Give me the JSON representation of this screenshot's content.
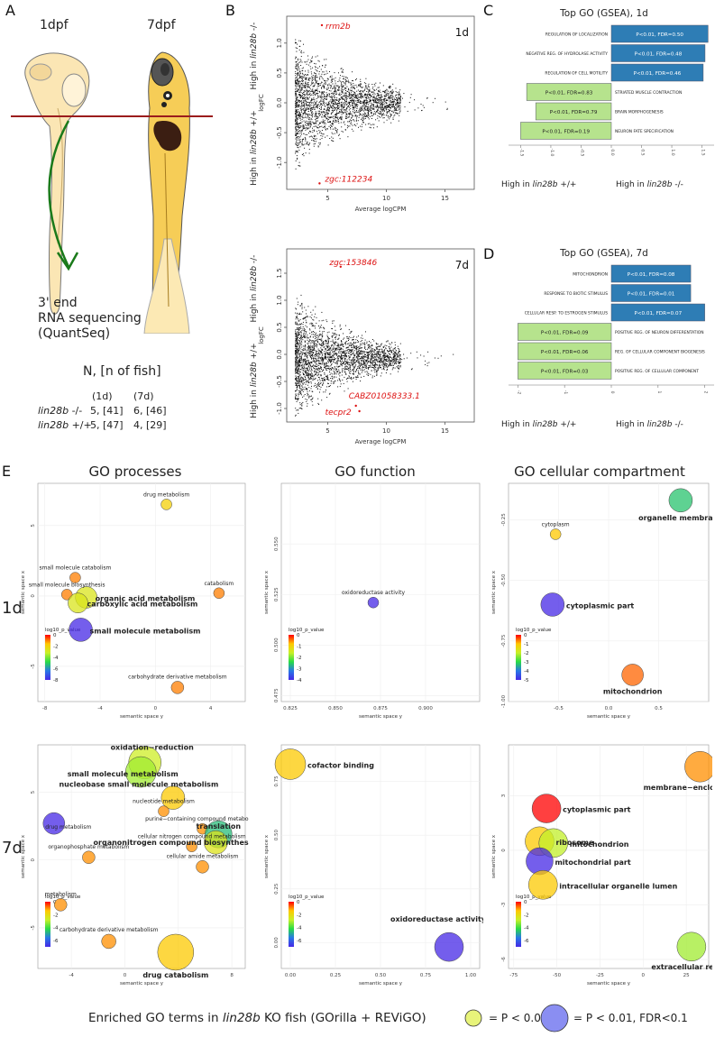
{
  "letters": {
    "a": "A",
    "b": "B",
    "c": "C",
    "d": "D",
    "e": "E"
  },
  "panel_a": {
    "stage1": "1dpf",
    "stage2": "7dpf",
    "seq1": "3' end",
    "seq2": "RNA sequencing",
    "seq3": "(QuantSeq)",
    "n_title": "N, [n of fish]",
    "col1": "(1d)",
    "col2": "(7d)",
    "rows": [
      {
        "gene": "lin28b",
        "geno": " -/-",
        "c1": "5, [41]",
        "c2": "6, [46]"
      },
      {
        "gene": "lin28b",
        "geno": " +/+",
        "c1": "5, [47]",
        "c2": "4, [29]"
      }
    ]
  },
  "ma_plots": [
    {
      "label": "1d",
      "high_top": "High in ",
      "high_top_gene": "lin28b",
      "high_top_geno": " -/-",
      "high_bot": "High in ",
      "high_bot_gene": "lin28b",
      "high_bot_geno": " +/+",
      "ylabel": "logFC",
      "xlabel": "Average logCPM",
      "xticks": [
        "5",
        "10",
        "15"
      ],
      "yticks": [
        "1.0",
        "0.5",
        "0.0",
        "-0.5",
        "-1.0"
      ],
      "genes": [
        {
          "name": "rrm2b",
          "x": 4.5,
          "y": 1.3
        },
        {
          "name": "zgc:112234",
          "x": 4.3,
          "y": -1.35
        }
      ],
      "xlim": [
        1.5,
        17.5
      ],
      "ylim": [
        -1.45,
        1.45
      ]
    },
    {
      "label": "7d",
      "high_top": "High in ",
      "high_top_gene": "lin28b",
      "high_top_geno": " -/-",
      "high_bot": "High in ",
      "high_bot_gene": "lin28b",
      "high_bot_geno": " +/+",
      "ylabel": "logFC",
      "xlabel": "Average logCPM",
      "xticks": [
        "5",
        "10",
        "15"
      ],
      "yticks": [
        "1.5",
        "1.0",
        "0.5",
        "0.0",
        "-0.5",
        "-1.0"
      ],
      "genes": [
        {
          "name": "zgc:153846",
          "x": 6.1,
          "y": 1.62
        },
        {
          "name": "CABZ01058333.1",
          "x": 7.4,
          "y": -0.95
        },
        {
          "name": "tecpr2",
          "x": 7.7,
          "y": -1.05
        }
      ],
      "xlim": [
        1.5,
        17.5
      ],
      "ylim": [
        -1.25,
        1.95
      ]
    }
  ],
  "gsea": [
    {
      "title": "Top GO (GSEA), 1d",
      "left": "High in ",
      "left_gene": "lin28b",
      "left_geno": " +/+",
      "right": "High in ",
      "right_gene": "lin28b",
      "right_geno": " -/-",
      "xticks": [
        "-1.5",
        "-1.0",
        "-0.5",
        "0.0",
        "0.5",
        "1.0",
        "1.5"
      ],
      "bars": [
        {
          "term": "REGULATION OF LOCALIZATION",
          "stat": "P<0.01, FDR=0.50",
          "value": 1.6
        },
        {
          "term": "NEGATIVE REG. OF HYDROLASE ACTIVITY",
          "stat": "P<0.01, FDR=0.48",
          "value": 1.55
        },
        {
          "term": "REGULATION OF CELL MOTILITY",
          "stat": "P<0.01, FDR=0.46",
          "value": 1.52
        },
        {
          "term": "STRIATED MUSCLE CONTRACTION",
          "stat": "P<0.01, FDR=0.83",
          "value": -1.4
        },
        {
          "term": "BRAIN MORPHOGENESIS",
          "stat": "P<0.01, FDR=0.79",
          "value": -1.25
        },
        {
          "term": "NEURON FATE SPECIFICATION",
          "stat": "P<0.01, FDR=0.19",
          "value": -1.5
        }
      ],
      "xlim": [
        -1.7,
        1.7
      ]
    },
    {
      "title": "Top GO (GSEA), 7d",
      "left": "High in ",
      "left_gene": "lin28b",
      "left_geno": " +/+",
      "right": "High in ",
      "right_gene": "lin28b",
      "right_geno": " -/-",
      "xticks": [
        "-2",
        "-1",
        "0",
        "1",
        "2"
      ],
      "bars": [
        {
          "term": "MITOCHONDRION",
          "stat": "P<0.01, FDR=0.08",
          "value": 1.7
        },
        {
          "term": "RESPONSE TO BIOTIC STIMULUS",
          "stat": "P<0.01, FDR=0.01",
          "value": 1.7
        },
        {
          "term": "CELLULAR RESP. TO ESTROGEN STIMULUS",
          "stat": "P<0.01, FDR=0.07",
          "value": 2.0
        },
        {
          "term": "POSITIVE REG. OF NEURON DIFFERENTATION",
          "stat": "P<0.01, FDR=0.09",
          "value": -2.0
        },
        {
          "term": "REG. OF CELLULAR COMPONENT BIOGENESIS",
          "stat": "P<0.01, FDR=0.06",
          "value": -2.0
        },
        {
          "term": "POSITIVE REG. OF CELLULAR COMPONENT",
          "stat": "P<0.01, FDR=0.03",
          "value": -2.0
        }
      ],
      "xlim": [
        -2.2,
        2.2
      ]
    }
  ],
  "section_e": {
    "col_titles": [
      "GO processes",
      "GO function",
      "GO cellular compartment"
    ],
    "row_labels": [
      "1d",
      "7d"
    ],
    "axis_x": "semantic space y",
    "axis_y": "semantic space x",
    "legend_title": "log10_p_value",
    "footer_pre": "Enriched GO terms in ",
    "footer_gene": "lin28b",
    "footer_post": " KO fish (GOrilla + REViGO)",
    "key1": "= P < 0.01",
    "key2": "= P < 0.01, FDR<0.1"
  },
  "chart_data": [
    {
      "type": "scatter",
      "title": "",
      "xlabel": "semantic space y",
      "ylabel": "semantic space x",
      "xlim": [
        -8.5,
        6.5
      ],
      "ylim": [
        -7.5,
        8.0
      ],
      "xticks": [
        "-8",
        "-4",
        "0",
        "4"
      ],
      "yticks": [
        "5",
        "0",
        "-5"
      ],
      "xtickv": [
        -8,
        -4,
        0,
        4
      ],
      "ytickv": [
        5,
        0,
        -5
      ],
      "legend": {
        "ticks": [
          "0",
          "-2",
          "-4",
          "-6",
          "-8"
        ],
        "min": -8
      },
      "points": [
        {
          "label": "drug metabolism",
          "x": 0.8,
          "y": 6.5,
          "p": -2,
          "r": 6,
          "bold": false
        },
        {
          "label": "small molecule catabolism",
          "x": -5.8,
          "y": 1.3,
          "p": -1,
          "r": 6,
          "bold": false
        },
        {
          "label": "catabolism",
          "x": 4.6,
          "y": 0.2,
          "p": -1,
          "r": 6,
          "bold": false
        },
        {
          "label": "small molecule biosynthesis",
          "x": -6.4,
          "y": 0.1,
          "p": -1,
          "r": 6,
          "bold": false
        },
        {
          "label": "organic acid metabolism",
          "x": -5.0,
          "y": -0.1,
          "p": -3,
          "r": 12,
          "bold": true
        },
        {
          "label": "carboxylic acid metabolism",
          "x": -5.6,
          "y": -0.5,
          "p": -3,
          "r": 11,
          "bold": true
        },
        {
          "label": "small molecule metabolism",
          "x": -5.4,
          "y": -2.4,
          "p": -8,
          "r": 13,
          "bold": true
        },
        {
          "label": "carbohydrate derivative metabolism",
          "x": 1.6,
          "y": -6.5,
          "p": -1,
          "r": 7,
          "bold": false
        }
      ]
    },
    {
      "type": "scatter",
      "title": "",
      "xlabel": "semantic space y",
      "ylabel": "semantic space x",
      "xlim": [
        0.82,
        0.93
      ],
      "ylim": [
        0.472,
        0.58
      ],
      "xticks": [
        "0.825",
        "0.850",
        "0.875",
        "0.900"
      ],
      "yticks": [
        "0.550",
        "0.525",
        "0.500",
        "0.475"
      ],
      "xtickv": [
        0.825,
        0.85,
        0.875,
        0.9
      ],
      "ytickv": [
        0.55,
        0.525,
        0.5,
        0.475
      ],
      "legend": {
        "ticks": [
          "0",
          "-1",
          "-2",
          "-3",
          "-4"
        ],
        "min": -4
      },
      "points": [
        {
          "label": "oxidoreductase activity",
          "x": 0.871,
          "y": 0.521,
          "p": -4,
          "r": 6,
          "bold": false
        }
      ]
    },
    {
      "type": "scatter",
      "title": "",
      "xlabel": "semantic space y",
      "ylabel": "semantic space x",
      "xlim": [
        -1.0,
        1.0
      ],
      "ylim": [
        -1.0,
        -0.1
      ],
      "xticks": [
        "-0.5",
        "0.0",
        "0.5"
      ],
      "yticks": [
        "-0.25",
        "-0.50",
        "-0.75",
        "-1.00"
      ],
      "xtickv": [
        -0.5,
        0.0,
        0.5
      ],
      "ytickv": [
        -0.25,
        -0.5,
        -0.75,
        -1.0
      ],
      "legend": {
        "ticks": [
          "0",
          "-1",
          "-2",
          "-3",
          "-4",
          "-5"
        ],
        "min": -5
      },
      "points": [
        {
          "label": "organelle membrane",
          "x": 0.72,
          "y": -0.17,
          "p": -3.5,
          "r": 13,
          "bold": true
        },
        {
          "label": "cytoplasm",
          "x": -0.53,
          "y": -0.31,
          "p": -1,
          "r": 6,
          "bold": false
        },
        {
          "label": "cytoplasmic part",
          "x": -0.56,
          "y": -0.6,
          "p": -5,
          "r": 13,
          "bold": true
        },
        {
          "label": "mitochondrion",
          "x": 0.24,
          "y": -0.89,
          "p": -0.5,
          "r": 12,
          "bold": true
        }
      ]
    },
    {
      "type": "scatter",
      "title": "",
      "xlabel": "semantic space y",
      "ylabel": "semantic space x",
      "xlim": [
        -6.5,
        9.0
      ],
      "ylim": [
        -8.0,
        8.5
      ],
      "xticks": [
        "-4",
        "0",
        "4",
        "8"
      ],
      "yticks": [
        "5",
        "0",
        "-5"
      ],
      "xtickv": [
        -4,
        0,
        4,
        8
      ],
      "ytickv": [
        5,
        0,
        -5
      ],
      "legend": {
        "ticks": [
          "0",
          "-2",
          "-4",
          "-6"
        ],
        "min": -7
      },
      "points": [
        {
          "label": "oxidation−reduction",
          "x": 1.5,
          "y": 7.2,
          "p": -3,
          "r": 18,
          "bold": true
        },
        {
          "label": "small molecule metabolism",
          "x": 1.2,
          "y": 6.5,
          "p": -3.5,
          "r": 17,
          "bold": true
        },
        {
          "label": "nucleobase small molecule metabolism",
          "x": 3.6,
          "y": 4.6,
          "p": -1.5,
          "r": 13,
          "bold": true
        },
        {
          "label": "drug metabolism",
          "x": -5.3,
          "y": 2.7,
          "p": -7,
          "r": 12,
          "bold": false
        },
        {
          "label": "nucleotide metabolism",
          "x": 2.9,
          "y": 3.6,
          "p": -1,
          "r": 6,
          "bold": false
        },
        {
          "label": "purine−containing compound metabolism",
          "x": 5.8,
          "y": 2.3,
          "p": -1,
          "r": 6,
          "bold": false
        },
        {
          "label": "translation",
          "x": 7.0,
          "y": 1.9,
          "p": -5,
          "r": 15,
          "bold": true
        },
        {
          "label": "organonitrogen compound biosynthesis",
          "x": 6.8,
          "y": 1.3,
          "p": -2.5,
          "r": 13,
          "bold": true
        },
        {
          "label": "cellular nitrogen compound metabolism",
          "x": 5.0,
          "y": 1.0,
          "p": -1,
          "r": 6,
          "bold": false
        },
        {
          "label": "organophosphate metabolism",
          "x": -2.7,
          "y": 0.2,
          "p": -1,
          "r": 7,
          "bold": false
        },
        {
          "label": "cellular amide metabolism",
          "x": 5.8,
          "y": -0.5,
          "p": -1,
          "r": 7,
          "bold": false
        },
        {
          "label": "metabolism",
          "x": -4.8,
          "y": -3.3,
          "p": -1,
          "r": 7,
          "bold": false
        },
        {
          "label": "carbohydrate derivative metabolism",
          "x": -1.2,
          "y": -6.0,
          "p": -1,
          "r": 8,
          "bold": false
        },
        {
          "label": "drug catabolism",
          "x": 3.8,
          "y": -6.8,
          "p": -1.5,
          "r": 20,
          "bold": true
        }
      ]
    },
    {
      "type": "scatter",
      "title": "",
      "xlabel": "semantic space y",
      "ylabel": "semantic space x",
      "xlim": [
        -0.05,
        1.05
      ],
      "ylim": [
        -0.12,
        0.92
      ],
      "xticks": [
        "0.00",
        "0.25",
        "0.50",
        "0.75",
        "1.00"
      ],
      "yticks": [
        "0.75",
        "0.50",
        "0.25",
        "0.00"
      ],
      "xtickv": [
        0.0,
        0.25,
        0.5,
        0.75,
        1.0
      ],
      "ytickv": [
        0.75,
        0.5,
        0.25,
        0.0
      ],
      "legend": {
        "ticks": [
          "0",
          "-2",
          "-4",
          "-6"
        ],
        "min": -7
      },
      "points": [
        {
          "label": "cofactor binding",
          "x": 0.0,
          "y": 0.83,
          "p": -1.5,
          "r": 17,
          "bold": true
        },
        {
          "label": "oxidoreductase activity",
          "x": 0.88,
          "y": -0.02,
          "p": -7,
          "r": 16,
          "bold": true
        }
      ]
    },
    {
      "type": "scatter",
      "title": "",
      "xlabel": "semantic space y",
      "ylabel": "semantic space x",
      "xlim": [
        -78,
        38
      ],
      "ylim": [
        -6.5,
        5.8
      ],
      "xticks": [
        "-75",
        "-50",
        "-25",
        "0",
        "25"
      ],
      "yticks": [
        "3",
        "0",
        "-3",
        "-6"
      ],
      "xtickv": [
        -75,
        -50,
        -25,
        0,
        25
      ],
      "ytickv": [
        3,
        0,
        -3,
        -6
      ],
      "legend": {
        "ticks": [
          "0",
          "-2",
          "-4",
          "-6"
        ],
        "min": -7
      },
      "points": [
        {
          "label": "membrane−enclosed lumen",
          "x": 33,
          "y": 4.6,
          "p": -1,
          "r": 17,
          "bold": true
        },
        {
          "label": "cytoplasmic part",
          "x": -56,
          "y": 2.3,
          "p": 0,
          "r": 16,
          "bold": true
        },
        {
          "label": "ribosome",
          "x": -60,
          "y": 0.5,
          "p": -1.5,
          "r": 16,
          "bold": true
        },
        {
          "label": "mitochondrion",
          "x": -52,
          "y": 0.4,
          "p": -3.2,
          "r": 16,
          "bold": true
        },
        {
          "label": "mitochondrial part",
          "x": -60,
          "y": -0.6,
          "p": -7,
          "r": 15,
          "bold": true
        },
        {
          "label": "intracellular organelle lumen",
          "x": -58,
          "y": -1.9,
          "p": -1.5,
          "r": 16,
          "bold": true
        },
        {
          "label": "extracellular region",
          "x": 28,
          "y": -5.3,
          "p": -3.5,
          "r": 16,
          "bold": true
        }
      ]
    }
  ]
}
